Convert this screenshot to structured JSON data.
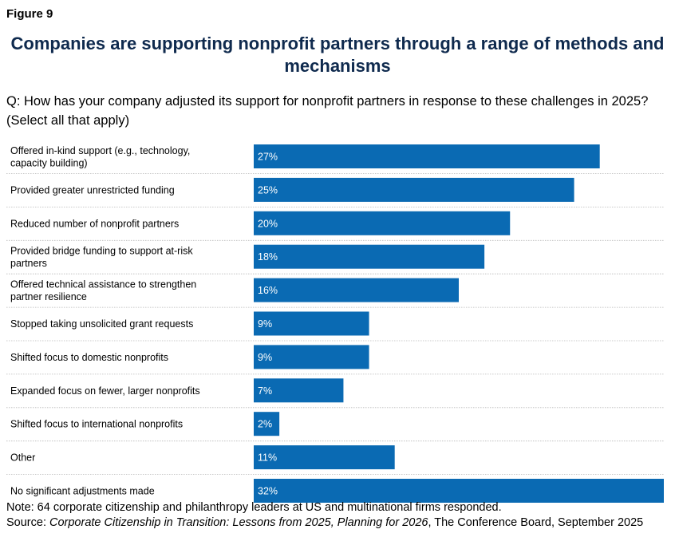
{
  "figure_label": "Figure 9",
  "title": "Companies are supporting nonprofit partners through a range of methods and mechanisms",
  "question": "Q: How has your company adjusted its support for nonprofit partners in response to these challenges in 2025? (Select all that apply)",
  "chart_data": {
    "type": "bar",
    "orientation": "horizontal",
    "categories": [
      "Offered in-kind support (e.g., technology, capacity building)",
      "Provided greater unrestricted funding",
      "Reduced number of nonprofit partners",
      "Provided bridge funding to support at-risk partners",
      "Offered technical assistance to strengthen partner resilience",
      "Stopped taking unsolicited grant requests",
      "Shifted focus to domestic nonprofits",
      "Expanded focus on fewer, larger nonprofits",
      "Shifted focus to international nonprofits",
      "Other",
      "No significant adjustments made"
    ],
    "values": [
      27,
      25,
      20,
      18,
      16,
      9,
      9,
      7,
      2,
      11,
      32
    ],
    "value_labels": [
      "27%",
      "25%",
      "20%",
      "18%",
      "16%",
      "9%",
      "9%",
      "7%",
      "2%",
      "11%",
      "32%"
    ],
    "unit": "%",
    "xlim": [
      0,
      32
    ],
    "grid": false,
    "bar_color": "#0a6ab3",
    "label_color": "#ffffff"
  },
  "note": "Note: 64 corporate citizenship and philanthropy leaders at US and multinational firms responded.",
  "source": {
    "prefix": "Source: ",
    "title": "Corporate Citizenship in Transition: Lessons from 2025, Planning for 2026",
    "suffix": ", The Conference Board, September 2025"
  },
  "colors": {
    "title": "#0f2a4e",
    "bar": "#0a6ab3",
    "separator": "#b8b8b8"
  }
}
